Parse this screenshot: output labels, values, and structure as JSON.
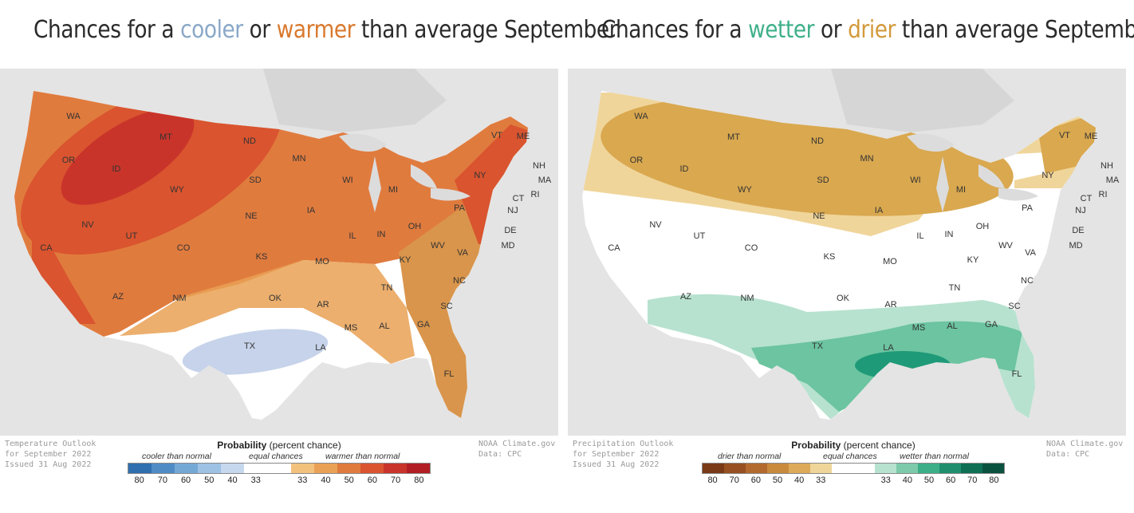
{
  "left": {
    "title_prefix": "Chances for a ",
    "title_word1": "cooler",
    "title_mid": " or ",
    "title_word2": "warmer",
    "title_suffix": " than average September",
    "word1_color": "#8aa8c8",
    "word2_color": "#d9792e",
    "outlook_line1": "Temperature Outlook",
    "outlook_line2": "for September 2022",
    "outlook_line3": "Issued 31 Aug 2022",
    "credit_line1": "NOAA Climate.gov",
    "credit_line2": "Data: CPC",
    "legend_title": "Probability",
    "legend_title_note": "(percent chance)",
    "legend_below": "cooler than normal",
    "legend_equal": "equal chances",
    "legend_above": "warmer than normal",
    "colors": [
      "#2f6fb0",
      "#4f8cc6",
      "#74a9d6",
      "#9dc2e4",
      "#c6d8ee",
      "#ffffff",
      "#ffffff",
      "#f2c27d",
      "#e9a155",
      "#e07b3e",
      "#d9542f",
      "#c9342a",
      "#b11e24"
    ],
    "ticks": [
      "80",
      "70",
      "60",
      "50",
      "40",
      "33",
      "33",
      "40",
      "50",
      "60",
      "70",
      "80"
    ]
  },
  "right": {
    "title_prefix": "Chances for a ",
    "title_word1": "wetter",
    "title_mid": " or ",
    "title_word2": "drier",
    "title_suffix": " than average September",
    "word1_color": "#3fb08a",
    "word2_color": "#d29a3c",
    "outlook_line1": "Precipitation Outlook",
    "outlook_line2": "for September 2022",
    "outlook_line3": "Issued 31 Aug 2022",
    "credit_line1": "NOAA Climate.gov",
    "credit_line2": "Data: CPC",
    "legend_title": "Probability",
    "legend_title_note": "(percent chance)",
    "legend_below": "drier than normal",
    "legend_equal": "equal chances",
    "legend_above": "wetter than normal",
    "colors": [
      "#7a3a17",
      "#965022",
      "#b36a2e",
      "#c98a3e",
      "#dcaa58",
      "#f0d59a",
      "#ffffff",
      "#ffffff",
      "#b7e2cf",
      "#7ccaa9",
      "#3daf88",
      "#1f8f6e",
      "#0f6f55",
      "#0a5140"
    ],
    "ticks": [
      "80",
      "70",
      "60",
      "50",
      "40",
      "33",
      "33",
      "40",
      "50",
      "60",
      "70",
      "80"
    ]
  },
  "states": [
    "WA",
    "OR",
    "CA",
    "ID",
    "NV",
    "MT",
    "WY",
    "UT",
    "AZ",
    "CO",
    "NM",
    "ND",
    "SD",
    "NE",
    "KS",
    "OK",
    "TX",
    "MN",
    "IA",
    "MO",
    "AR",
    "LA",
    "WI",
    "IL",
    "MS",
    "MI",
    "IN",
    "KY",
    "TN",
    "AL",
    "OH",
    "GA",
    "FL",
    "SC",
    "NC",
    "VA",
    "WV",
    "PA",
    "NY",
    "VT",
    "ME",
    "NH",
    "MA",
    "CT",
    "RI",
    "NJ",
    "DE",
    "MD"
  ]
}
